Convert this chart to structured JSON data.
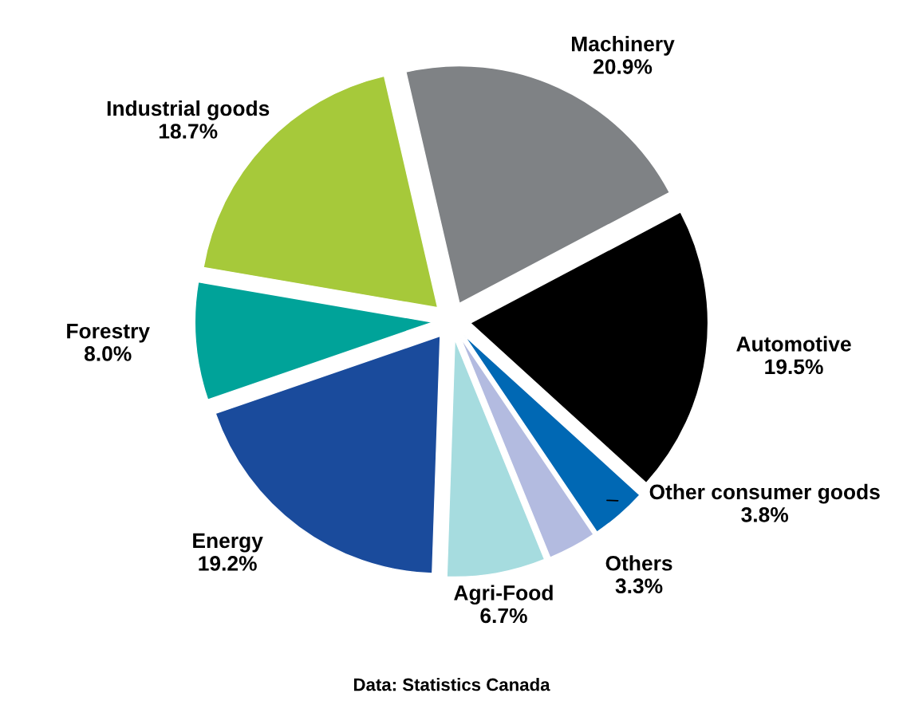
{
  "chart_data": {
    "type": "pie",
    "categories": [
      "Machinery",
      "Automotive",
      "Other consumer goods",
      "Others",
      "Agri-Food",
      "Energy",
      "Forestry",
      "Industrial goods"
    ],
    "values": [
      20.9,
      19.5,
      3.8,
      3.3,
      6.7,
      19.2,
      8.0,
      18.7
    ],
    "value_labels": [
      "20.9%",
      "19.5%",
      "3.8%",
      "3.3%",
      "6.7%",
      "19.2%",
      "8.0%",
      "18.7%"
    ],
    "colors": [
      "#7f8285",
      "#000000",
      "#0068b4",
      "#b3bbe0",
      "#a6dcdf",
      "#1a4b9c",
      "#00a399",
      "#a6c93a"
    ],
    "annotations": [
      "Data: Statistics Canada"
    ]
  }
}
